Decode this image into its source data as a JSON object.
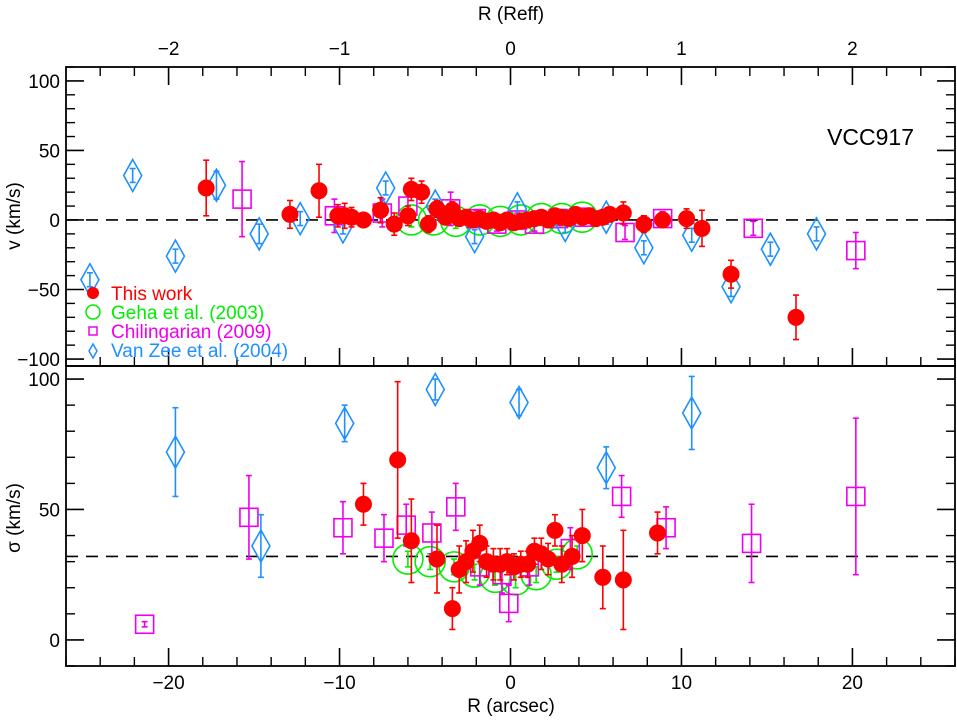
{
  "chart_data": {
    "type": "scatter",
    "object_label": "VCC917",
    "xlabel_bottom": "R (arcsec)",
    "xlabel_top": "R (Reff)",
    "xlim": [
      -26,
      26
    ],
    "xticks": [
      -20,
      -10,
      0,
      10,
      20
    ],
    "top_xticks": [
      -2,
      -1,
      0,
      1,
      2
    ],
    "arcsec_per_reff": 10,
    "panels": [
      {
        "id": "velocity",
        "ylabel": "v (km/s)",
        "ylim": [
          -105,
          110
        ],
        "yticks": [
          -100,
          -50,
          0,
          50,
          100
        ],
        "reference_line": 0,
        "series": [
          {
            "name": "This work",
            "marker": "filled-circle",
            "color": "#ff0000",
            "points": [
              {
                "x": -17.8,
                "y": 23,
                "err": 20
              },
              {
                "x": -12.9,
                "y": 4,
                "err": 10
              },
              {
                "x": -11.2,
                "y": 21,
                "err": 19
              },
              {
                "x": -10.1,
                "y": 3,
                "err": 8
              },
              {
                "x": -9.7,
                "y": 3,
                "err": 9
              },
              {
                "x": -9.3,
                "y": 2,
                "err": 7
              },
              {
                "x": -8.6,
                "y": 0,
                "err": 5
              },
              {
                "x": -7.6,
                "y": 7,
                "err": 9
              },
              {
                "x": -6.8,
                "y": -3,
                "err": 8
              },
              {
                "x": -6.0,
                "y": 3,
                "err": 7
              },
              {
                "x": -5.8,
                "y": 22,
                "err": 8
              },
              {
                "x": -5.2,
                "y": 20,
                "err": 8
              },
              {
                "x": -4.8,
                "y": -3,
                "err": 6
              },
              {
                "x": -4.3,
                "y": 8,
                "err": 6
              },
              {
                "x": -3.8,
                "y": 2,
                "err": 5
              },
              {
                "x": -3.4,
                "y": 7,
                "err": 6
              },
              {
                "x": -3.0,
                "y": 1,
                "err": 5
              },
              {
                "x": -2.6,
                "y": 2,
                "err": 4
              },
              {
                "x": -2.2,
                "y": 0,
                "err": 4
              },
              {
                "x": -1.8,
                "y": 1,
                "err": 4
              },
              {
                "x": -1.4,
                "y": -1,
                "err": 4
              },
              {
                "x": -1.0,
                "y": 0,
                "err": 4
              },
              {
                "x": -0.6,
                "y": -2,
                "err": 4
              },
              {
                "x": -0.2,
                "y": 0,
                "err": 4
              },
              {
                "x": 0.2,
                "y": -2,
                "err": 4
              },
              {
                "x": 0.6,
                "y": -1,
                "err": 4
              },
              {
                "x": 1.0,
                "y": 0,
                "err": 4
              },
              {
                "x": 1.4,
                "y": 1,
                "err": 4
              },
              {
                "x": 1.8,
                "y": 2,
                "err": 4
              },
              {
                "x": 2.2,
                "y": 0,
                "err": 4
              },
              {
                "x": 2.6,
                "y": 3,
                "err": 4
              },
              {
                "x": 3.0,
                "y": 2,
                "err": 4
              },
              {
                "x": 3.4,
                "y": 1,
                "err": 4
              },
              {
                "x": 3.8,
                "y": 4,
                "err": 4
              },
              {
                "x": 4.2,
                "y": 2,
                "err": 4
              },
              {
                "x": 4.6,
                "y": 3,
                "err": 4
              },
              {
                "x": 5.0,
                "y": 1,
                "err": 5
              },
              {
                "x": 5.4,
                "y": 2,
                "err": 5
              },
              {
                "x": 5.8,
                "y": 4,
                "err": 5
              },
              {
                "x": 6.6,
                "y": 5,
                "err": 8
              },
              {
                "x": 7.8,
                "y": -3,
                "err": 6
              },
              {
                "x": 8.9,
                "y": 0,
                "err": 5
              },
              {
                "x": 10.3,
                "y": 1,
                "err": 7
              },
              {
                "x": 11.2,
                "y": -6,
                "err": 13
              },
              {
                "x": 12.9,
                "y": -39,
                "err": 10
              },
              {
                "x": 16.7,
                "y": -70,
                "err": 16
              }
            ]
          },
          {
            "name": "Geha et al. (2003)",
            "marker": "open-circle",
            "color": "#00ee00",
            "points": [
              {
                "x": -5.8,
                "y": 0,
                "err": 5
              },
              {
                "x": -4.5,
                "y": 0,
                "err": 5
              },
              {
                "x": -3.2,
                "y": -1,
                "err": 5
              },
              {
                "x": -1.8,
                "y": 0,
                "err": 5
              },
              {
                "x": -0.6,
                "y": -1,
                "err": 5
              },
              {
                "x": 0.6,
                "y": 0,
                "err": 5
              },
              {
                "x": 1.8,
                "y": 1,
                "err": 5
              },
              {
                "x": 3.0,
                "y": 1,
                "err": 5
              },
              {
                "x": 4.2,
                "y": 2,
                "err": 5
              }
            ]
          },
          {
            "name": "Chilingarian (2009)",
            "marker": "open-square",
            "color": "#ee00ee",
            "points": [
              {
                "x": -15.7,
                "y": 15,
                "err": 27
              },
              {
                "x": -10.3,
                "y": 3,
                "err": 12
              },
              {
                "x": -7.5,
                "y": 5,
                "err": 10
              },
              {
                "x": -6.0,
                "y": 10,
                "err": 9
              },
              {
                "x": -3.5,
                "y": 8,
                "err": 12
              },
              {
                "x": -2.0,
                "y": 1,
                "err": 6
              },
              {
                "x": -0.8,
                "y": -3,
                "err": 5
              },
              {
                "x": 0.4,
                "y": 0,
                "err": 5
              },
              {
                "x": 1.4,
                "y": -3,
                "err": 5
              },
              {
                "x": 2.8,
                "y": 1,
                "err": 5
              },
              {
                "x": 4.3,
                "y": 2,
                "err": 5
              },
              {
                "x": 6.7,
                "y": -9,
                "err": 5
              },
              {
                "x": 8.9,
                "y": 1,
                "err": 5
              },
              {
                "x": 14.2,
                "y": -6,
                "err": 5
              },
              {
                "x": 20.2,
                "y": -22,
                "err": 13
              }
            ]
          },
          {
            "name": "Van Zee et al. (2004)",
            "marker": "open-diamond",
            "color": "#1e90ff",
            "points": [
              {
                "x": -24.6,
                "y": -43,
                "err": 5
              },
              {
                "x": -22.1,
                "y": 32,
                "err": 5
              },
              {
                "x": -19.6,
                "y": -26,
                "err": 5
              },
              {
                "x": -17.2,
                "y": 25,
                "err": 10
              },
              {
                "x": -14.7,
                "y": -10,
                "err": 7
              },
              {
                "x": -12.3,
                "y": 1,
                "err": 5
              },
              {
                "x": -9.8,
                "y": -5,
                "err": 5
              },
              {
                "x": -7.3,
                "y": 23,
                "err": 5
              },
              {
                "x": -4.4,
                "y": 10,
                "err": 5
              },
              {
                "x": -2.1,
                "y": -12,
                "err": 5
              },
              {
                "x": 0.4,
                "y": 8,
                "err": 5
              },
              {
                "x": 3.2,
                "y": -4,
                "err": 5
              },
              {
                "x": 5.6,
                "y": 2,
                "err": 5
              },
              {
                "x": 7.8,
                "y": -20,
                "err": 5
              },
              {
                "x": 10.6,
                "y": -11,
                "err": 5
              },
              {
                "x": 12.9,
                "y": -48,
                "err": 7
              },
              {
                "x": 15.2,
                "y": -21,
                "err": 5
              },
              {
                "x": 17.9,
                "y": -10,
                "err": 5
              }
            ]
          }
        ]
      },
      {
        "id": "dispersion",
        "ylabel": "σ (km/s)",
        "ylim": [
          -10,
          105
        ],
        "yticks": [
          0,
          50,
          100
        ],
        "reference_line": 32,
        "series": [
          {
            "name": "This work",
            "marker": "filled-circle",
            "color": "#ff0000",
            "points": [
              {
                "x": -8.6,
                "y": 52,
                "err": 8
              },
              {
                "x": -6.6,
                "y": 69,
                "err": 30
              },
              {
                "x": -5.8,
                "y": 38,
                "err": 16
              },
              {
                "x": -4.3,
                "y": 31,
                "err": 13
              },
              {
                "x": -3.4,
                "y": 12,
                "err": 8
              },
              {
                "x": -3.0,
                "y": 27,
                "err": 9
              },
              {
                "x": -2.6,
                "y": 30,
                "err": 8
              },
              {
                "x": -2.2,
                "y": 34,
                "err": 8
              },
              {
                "x": -1.8,
                "y": 37,
                "err": 7
              },
              {
                "x": -1.4,
                "y": 30,
                "err": 6
              },
              {
                "x": -1.0,
                "y": 29,
                "err": 6
              },
              {
                "x": -0.6,
                "y": 29,
                "err": 6
              },
              {
                "x": -0.2,
                "y": 30,
                "err": 5
              },
              {
                "x": 0.2,
                "y": 28,
                "err": 5
              },
              {
                "x": 0.6,
                "y": 29,
                "err": 5
              },
              {
                "x": 1.0,
                "y": 29,
                "err": 5
              },
              {
                "x": 1.4,
                "y": 34,
                "err": 5
              },
              {
                "x": 1.8,
                "y": 33,
                "err": 6
              },
              {
                "x": 2.2,
                "y": 31,
                "err": 6
              },
              {
                "x": 2.6,
                "y": 42,
                "err": 6
              },
              {
                "x": 3.0,
                "y": 29,
                "err": 7
              },
              {
                "x": 3.6,
                "y": 32,
                "err": 8
              },
              {
                "x": 4.2,
                "y": 40,
                "err": 10
              },
              {
                "x": 5.4,
                "y": 24,
                "err": 12
              },
              {
                "x": 6.6,
                "y": 23,
                "err": 19
              },
              {
                "x": 8.6,
                "y": 41,
                "err": 8
              }
            ]
          },
          {
            "name": "Geha et al. (2003)",
            "marker": "open-circle",
            "color": "#00ee00",
            "points": [
              {
                "x": -6.0,
                "y": 31,
                "err": 3
              },
              {
                "x": -4.7,
                "y": 30,
                "err": 3
              },
              {
                "x": -3.3,
                "y": 28,
                "err": 3
              },
              {
                "x": -2.1,
                "y": 26,
                "err": 3
              },
              {
                "x": -0.9,
                "y": 24,
                "err": 3
              },
              {
                "x": 0.3,
                "y": 23,
                "err": 3
              },
              {
                "x": 1.5,
                "y": 25,
                "err": 3
              },
              {
                "x": 2.7,
                "y": 29,
                "err": 3
              },
              {
                "x": 3.9,
                "y": 33,
                "err": 3
              }
            ]
          },
          {
            "name": "Chilingarian (2009)",
            "marker": "open-square",
            "color": "#ee00ee",
            "points": [
              {
                "x": -21.4,
                "y": 6,
                "err": 1
              },
              {
                "x": -15.3,
                "y": 47,
                "err": 16
              },
              {
                "x": -9.8,
                "y": 43,
                "err": 10
              },
              {
                "x": -7.4,
                "y": 39,
                "err": 9
              },
              {
                "x": -6.1,
                "y": 44,
                "err": 8
              },
              {
                "x": -4.6,
                "y": 41,
                "err": 8
              },
              {
                "x": -3.2,
                "y": 51,
                "err": 9
              },
              {
                "x": -1.8,
                "y": 28,
                "err": 7
              },
              {
                "x": -0.5,
                "y": 25,
                "err": 7
              },
              {
                "x": -0.1,
                "y": 14,
                "err": 7
              },
              {
                "x": 1.1,
                "y": 28,
                "err": 7
              },
              {
                "x": 3.5,
                "y": 35,
                "err": 8
              },
              {
                "x": 6.5,
                "y": 55,
                "err": 8
              },
              {
                "x": 9.1,
                "y": 43,
                "err": 8
              },
              {
                "x": 14.1,
                "y": 37,
                "err": 15
              },
              {
                "x": 20.2,
                "y": 55,
                "err": 30
              }
            ]
          },
          {
            "name": "Van Zee et al. (2004)",
            "marker": "open-diamond",
            "color": "#1e90ff",
            "points": [
              {
                "x": -19.6,
                "y": 72,
                "err": 17
              },
              {
                "x": -14.6,
                "y": 36,
                "err": 12
              },
              {
                "x": -9.7,
                "y": 83,
                "err": 7
              },
              {
                "x": -4.4,
                "y": 96,
                "err": 4
              },
              {
                "x": 0.5,
                "y": 91,
                "err": 5
              },
              {
                "x": 5.6,
                "y": 66,
                "err": 8
              },
              {
                "x": 10.6,
                "y": 87,
                "err": 14
              }
            ]
          }
        ]
      }
    ],
    "legend": {
      "placement": "lower-left of top panel",
      "entries": [
        {
          "label": "This work",
          "marker": "filled-circle",
          "color": "#ff0000"
        },
        {
          "label": "Geha et al. (2003)",
          "marker": "open-circle",
          "color": "#00ee00"
        },
        {
          "label": "Chilingarian (2009)",
          "marker": "open-square",
          "color": "#ee00ee"
        },
        {
          "label": "Van Zee et al. (2004)",
          "marker": "open-diamond",
          "color": "#1e90ff"
        }
      ]
    },
    "grid": false
  }
}
